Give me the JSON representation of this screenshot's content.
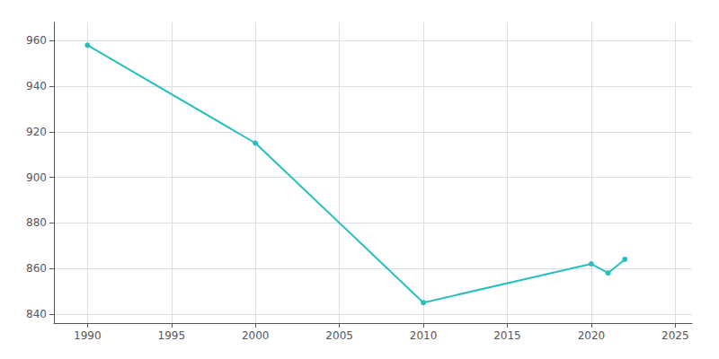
{
  "chart_data": {
    "type": "line",
    "x": [
      1990,
      2000,
      2010,
      2020,
      2021,
      2022
    ],
    "values": [
      958,
      915,
      845,
      862,
      858,
      864
    ],
    "color": "#2ABFBF",
    "marker": "circle",
    "xlim": [
      1988,
      2026
    ],
    "xticks": [
      1990,
      1995,
      2000,
      2005,
      2010,
      2015,
      2020,
      2025
    ],
    "ylim": [
      836,
      968
    ],
    "yticks": [
      840,
      860,
      880,
      900,
      920,
      940,
      960
    ],
    "grid": true
  }
}
